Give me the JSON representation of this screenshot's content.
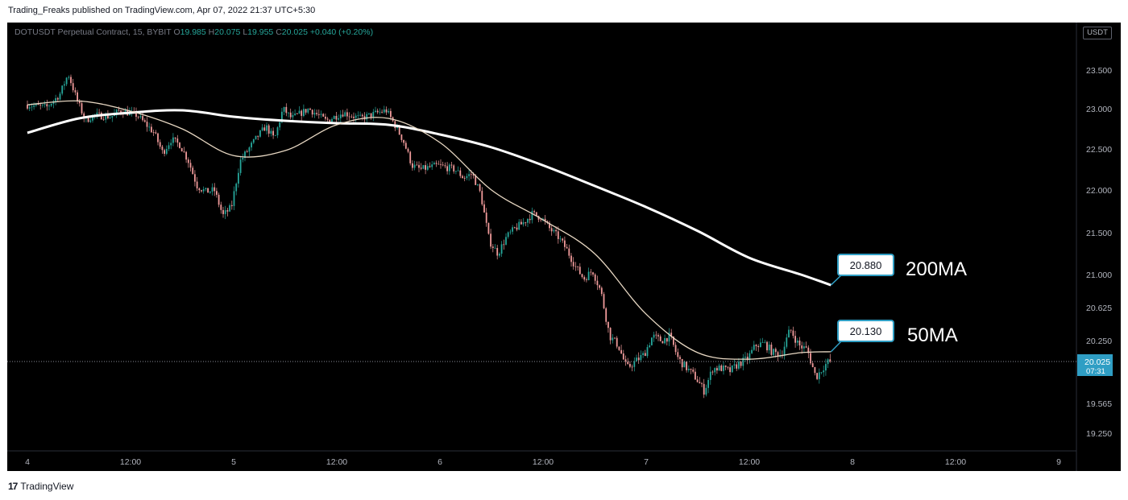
{
  "header": {
    "published": "Trading_Freaks published on TradingView.com, Apr 07, 2022 21:37 UTC+5:30"
  },
  "legend": {
    "symbol": "DOTUSDT Perpetual Contract, 15, BYBIT",
    "open_label": "O",
    "open": "19.985",
    "high_label": "H",
    "high": "20.075",
    "low_label": "L",
    "low": "19.955",
    "close_label": "C",
    "close": "20.025",
    "change": "+0.040 (+0.20%)"
  },
  "currency_badge": "USDT",
  "brand": {
    "logo": "17",
    "name": "TradingView"
  },
  "colors": {
    "up": "#26a69a",
    "down": "#ef9a9a",
    "ma50": "#e8d8c3",
    "ma200": "#ffffff",
    "label_border": "#2f9ec4",
    "price_badge": "#2f9ec4"
  },
  "chart_data": {
    "type": "candlestick",
    "title": "",
    "x_ticks": [
      "4",
      "12:00",
      "5",
      "12:00",
      "6",
      "12:00",
      "7",
      "12:00",
      "8",
      "12:00",
      "9"
    ],
    "y_ticks": [
      "23.500",
      "23.000",
      "22.500",
      "22.000",
      "21.500",
      "21.000",
      "20.625",
      "20.250",
      "19.565",
      "19.250"
    ],
    "current_price": "20.025",
    "countdown": "07:31",
    "annotations": [
      {
        "value": "20.880",
        "label": "200MA"
      },
      {
        "value": "20.130",
        "label": "50MA"
      }
    ],
    "path": [
      [
        "Apr 4 00:00",
        23.05
      ],
      [
        "Apr 4 02:30",
        23.02
      ],
      [
        "Apr 4 04:00",
        23.18
      ],
      [
        "Apr 4 05:00",
        23.45
      ],
      [
        "Apr 4 06:00",
        23.12
      ],
      [
        "Apr 4 07:00",
        22.85
      ],
      [
        "Apr 4 08:00",
        22.92
      ],
      [
        "Apr 4 10:00",
        22.9
      ],
      [
        "Apr 4 11:00",
        22.98
      ],
      [
        "Apr 4 13:00",
        22.92
      ],
      [
        "Apr 4 15:00",
        22.7
      ],
      [
        "Apr 4 16:00",
        22.45
      ],
      [
        "Apr 4 17:00",
        22.62
      ],
      [
        "Apr 4 18:00",
        22.55
      ],
      [
        "Apr 4 19:00",
        22.35
      ],
      [
        "Apr 4 20:00",
        22.05
      ],
      [
        "Apr 4 21:00",
        21.98
      ],
      [
        "Apr 4 22:00",
        22.0
      ],
      [
        "Apr 4 23:00",
        21.7
      ],
      [
        "Apr 5 00:00",
        21.8
      ],
      [
        "Apr 5 01:00",
        22.35
      ],
      [
        "Apr 5 02:00",
        22.5
      ],
      [
        "Apr 5 03:00",
        22.65
      ],
      [
        "Apr 5 04:00",
        22.78
      ],
      [
        "Apr 5 05:00",
        22.62
      ],
      [
        "Apr 5 06:00",
        23.0
      ],
      [
        "Apr 5 07:00",
        22.88
      ],
      [
        "Apr 5 09:00",
        23.0
      ],
      [
        "Apr 5 11:00",
        22.85
      ],
      [
        "Apr 5 13:00",
        22.95
      ],
      [
        "Apr 5 15:00",
        22.88
      ],
      [
        "Apr 5 17:00",
        22.95
      ],
      [
        "Apr 5 18:00",
        22.98
      ],
      [
        "Apr 5 19:00",
        22.8
      ],
      [
        "Apr 5 20:00",
        22.6
      ],
      [
        "Apr 5 21:00",
        22.3
      ],
      [
        "Apr 5 22:00",
        22.25
      ],
      [
        "Apr 6 00:00",
        22.3
      ],
      [
        "Apr 6 02:00",
        22.25
      ],
      [
        "Apr 6 03:00",
        22.15
      ],
      [
        "Apr 6 04:00",
        22.2
      ],
      [
        "Apr 6 05:00",
        21.95
      ],
      [
        "Apr 6 06:00",
        21.4
      ],
      [
        "Apr 6 07:00",
        21.25
      ],
      [
        "Apr 6 08:00",
        21.45
      ],
      [
        "Apr 6 09:00",
        21.55
      ],
      [
        "Apr 6 10:00",
        21.62
      ],
      [
        "Apr 6 11:00",
        21.72
      ],
      [
        "Apr 6 12:00",
        21.68
      ],
      [
        "Apr 6 13:00",
        21.55
      ],
      [
        "Apr 6 14:00",
        21.45
      ],
      [
        "Apr 6 15:00",
        21.3
      ],
      [
        "Apr 6 16:00",
        21.1
      ],
      [
        "Apr 6 17:00",
        20.95
      ],
      [
        "Apr 6 18:00",
        21.05
      ],
      [
        "Apr 6 19:00",
        20.8
      ],
      [
        "Apr 6 20:00",
        20.3
      ],
      [
        "Apr 6 21:00",
        20.2
      ],
      [
        "Apr 6 22:00",
        19.95
      ],
      [
        "Apr 7 00:00",
        20.1
      ],
      [
        "Apr 7 01:00",
        20.3
      ],
      [
        "Apr 7 02:00",
        20.25
      ],
      [
        "Apr 7 03:00",
        20.3
      ],
      [
        "Apr 7 04:00",
        20.05
      ],
      [
        "Apr 7 05:00",
        19.95
      ],
      [
        "Apr 7 06:00",
        19.85
      ],
      [
        "Apr 7 07:00",
        19.7
      ],
      [
        "Apr 7 08:00",
        19.95
      ],
      [
        "Apr 7 09:00",
        19.95
      ],
      [
        "Apr 7 10:00",
        19.92
      ],
      [
        "Apr 7 11:00",
        20.0
      ],
      [
        "Apr 7 12:00",
        20.05
      ],
      [
        "Apr 7 13:00",
        20.2
      ],
      [
        "Apr 7 14:00",
        20.22
      ],
      [
        "Apr 7 15:00",
        20.12
      ],
      [
        "Apr 7 16:00",
        20.1
      ],
      [
        "Apr 7 17:00",
        20.38
      ],
      [
        "Apr 7 18:00",
        20.2
      ],
      [
        "Apr 7 19:00",
        20.15
      ],
      [
        "Apr 7 20:00",
        19.85
      ],
      [
        "Apr 7 21:00",
        19.98
      ],
      [
        "Apr 7 21:30",
        20.025
      ]
    ],
    "ma50": [
      [
        "Apr 4 00:00",
        23.05
      ],
      [
        "Apr 4 06:00",
        23.1
      ],
      [
        "Apr 4 12:00",
        22.97
      ],
      [
        "Apr 4 18:00",
        22.75
      ],
      [
        "Apr 5 00:00",
        22.42
      ],
      [
        "Apr 5 06:00",
        22.48
      ],
      [
        "Apr 5 12:00",
        22.8
      ],
      [
        "Apr 5 18:00",
        22.88
      ],
      [
        "Apr 6 00:00",
        22.58
      ],
      [
        "Apr 6 06:00",
        22.0
      ],
      [
        "Apr 6 12:00",
        21.65
      ],
      [
        "Apr 6 18:00",
        21.25
      ],
      [
        "Apr 7 00:00",
        20.55
      ],
      [
        "Apr 7 06:00",
        20.12
      ],
      [
        "Apr 7 12:00",
        20.05
      ],
      [
        "Apr 7 18:00",
        20.12
      ],
      [
        "Apr 7 21:30",
        20.13
      ]
    ],
    "ma200": [
      [
        "Apr 4 00:00",
        22.7
      ],
      [
        "Apr 4 06:00",
        22.88
      ],
      [
        "Apr 4 12:00",
        22.95
      ],
      [
        "Apr 4 18:00",
        22.98
      ],
      [
        "Apr 5 00:00",
        22.9
      ],
      [
        "Apr 5 06:00",
        22.85
      ],
      [
        "Apr 5 12:00",
        22.82
      ],
      [
        "Apr 5 18:00",
        22.8
      ],
      [
        "Apr 6 00:00",
        22.68
      ],
      [
        "Apr 6 06:00",
        22.52
      ],
      [
        "Apr 6 12:00",
        22.3
      ],
      [
        "Apr 6 18:00",
        22.05
      ],
      [
        "Apr 7 00:00",
        21.8
      ],
      [
        "Apr 7 06:00",
        21.52
      ],
      [
        "Apr 7 12:00",
        21.2
      ],
      [
        "Apr 7 18:00",
        21.0
      ],
      [
        "Apr 7 21:30",
        20.88
      ]
    ]
  }
}
